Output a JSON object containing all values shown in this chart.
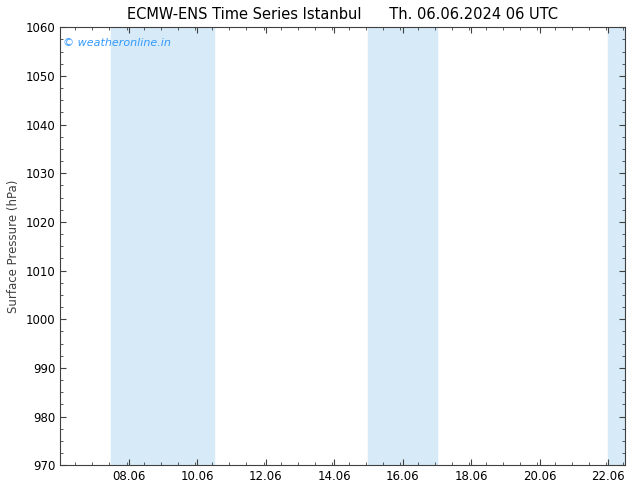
{
  "title_left": "ECMW-ENS Time Series Istanbul",
  "title_right": "Th. 06.06.2024 06 UTC",
  "ylabel": "Surface Pressure (hPa)",
  "ylim": [
    970,
    1060
  ],
  "yticks": [
    970,
    980,
    990,
    1000,
    1010,
    1020,
    1030,
    1040,
    1050,
    1060
  ],
  "xlim": [
    6.06,
    22.56
  ],
  "xticks": [
    8.06,
    10.06,
    12.06,
    14.06,
    16.06,
    18.06,
    20.06,
    22.06
  ],
  "xticklabels": [
    "08.06",
    "10.06",
    "12.06",
    "14.06",
    "16.06",
    "18.06",
    "20.06",
    "22.06"
  ],
  "shaded_bands": [
    {
      "x_start": 7.56,
      "x_end": 9.06
    },
    {
      "x_start": 9.06,
      "x_end": 10.56
    },
    {
      "x_start": 15.06,
      "x_end": 15.56
    },
    {
      "x_start": 15.56,
      "x_end": 17.06
    },
    {
      "x_start": 22.06,
      "x_end": 22.56
    }
  ],
  "band_color": "#d6eaf8",
  "background_color": "#ffffff",
  "watermark": "© weatheronline.in",
  "watermark_color": "#3399ff",
  "title_color": "#000000",
  "axis_color": "#404040",
  "tick_color": "#404040",
  "fig_width": 6.34,
  "fig_height": 4.9,
  "dpi": 100,
  "title_fontsize": 10.5,
  "ylabel_fontsize": 8.5,
  "tick_fontsize": 8.5
}
